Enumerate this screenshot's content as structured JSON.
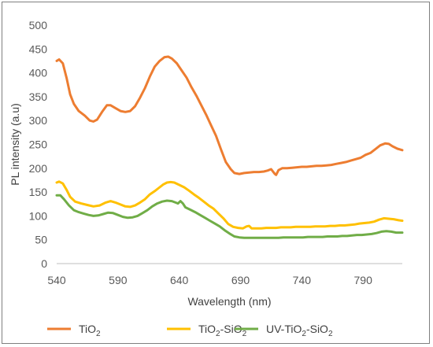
{
  "chart_data": {
    "type": "line",
    "title": "",
    "xlabel": "Wavelength (nm)",
    "ylabel": "PL intensity (a.u)",
    "xlim": [
      540,
      822
    ],
    "ylim": [
      0,
      500
    ],
    "x_ticks": [
      540,
      590,
      640,
      690,
      740,
      790
    ],
    "y_ticks": [
      0,
      50,
      100,
      150,
      200,
      250,
      300,
      350,
      400,
      450,
      500
    ],
    "grid": false,
    "legend_position": "bottom",
    "series": [
      {
        "name": "TiO2",
        "legend": {
          "base": "TiO",
          "sub": "2",
          "rest": ""
        },
        "color": "#ED7D31",
        "points": [
          [
            540,
            425
          ],
          [
            542,
            428
          ],
          [
            545,
            420
          ],
          [
            548,
            390
          ],
          [
            551,
            355
          ],
          [
            554,
            335
          ],
          [
            558,
            320
          ],
          [
            563,
            310
          ],
          [
            567,
            300
          ],
          [
            570,
            298
          ],
          [
            573,
            302
          ],
          [
            577,
            318
          ],
          [
            581,
            332
          ],
          [
            584,
            332
          ],
          [
            588,
            326
          ],
          [
            592,
            320
          ],
          [
            596,
            318
          ],
          [
            600,
            320
          ],
          [
            604,
            330
          ],
          [
            608,
            348
          ],
          [
            612,
            368
          ],
          [
            616,
            392
          ],
          [
            620,
            413
          ],
          [
            624,
            425
          ],
          [
            628,
            433
          ],
          [
            631,
            434
          ],
          [
            634,
            430
          ],
          [
            638,
            420
          ],
          [
            642,
            405
          ],
          [
            646,
            390
          ],
          [
            650,
            370
          ],
          [
            654,
            352
          ],
          [
            658,
            332
          ],
          [
            662,
            312
          ],
          [
            666,
            290
          ],
          [
            670,
            268
          ],
          [
            674,
            240
          ],
          [
            678,
            213
          ],
          [
            682,
            198
          ],
          [
            685,
            190
          ],
          [
            689,
            188
          ],
          [
            693,
            190
          ],
          [
            697,
            191
          ],
          [
            701,
            192
          ],
          [
            705,
            192
          ],
          [
            709,
            193
          ],
          [
            712,
            195
          ],
          [
            715,
            198
          ],
          [
            718,
            188
          ],
          [
            719,
            186
          ],
          [
            721,
            196
          ],
          [
            724,
            200
          ],
          [
            728,
            200
          ],
          [
            732,
            201
          ],
          [
            736,
            202
          ],
          [
            740,
            203
          ],
          [
            744,
            203
          ],
          [
            748,
            204
          ],
          [
            752,
            205
          ],
          [
            756,
            205
          ],
          [
            760,
            206
          ],
          [
            764,
            207
          ],
          [
            768,
            209
          ],
          [
            772,
            211
          ],
          [
            776,
            213
          ],
          [
            780,
            216
          ],
          [
            784,
            219
          ],
          [
            788,
            222
          ],
          [
            792,
            228
          ],
          [
            796,
            232
          ],
          [
            800,
            240
          ],
          [
            804,
            248
          ],
          [
            808,
            252
          ],
          [
            811,
            251
          ],
          [
            814,
            246
          ],
          [
            818,
            241
          ],
          [
            822,
            238
          ]
        ]
      },
      {
        "name": "TiO2-SiO2",
        "legend": {
          "base": "TiO",
          "sub": "2",
          "rest": "-SiO",
          "sub2": "2"
        },
        "color": "#FFC000",
        "points": [
          [
            540,
            170
          ],
          [
            542,
            172
          ],
          [
            545,
            168
          ],
          [
            548,
            155
          ],
          [
            551,
            140
          ],
          [
            555,
            130
          ],
          [
            560,
            126
          ],
          [
            565,
            123
          ],
          [
            570,
            120
          ],
          [
            575,
            122
          ],
          [
            580,
            128
          ],
          [
            584,
            131
          ],
          [
            588,
            128
          ],
          [
            592,
            124
          ],
          [
            596,
            120
          ],
          [
            600,
            119
          ],
          [
            604,
            122
          ],
          [
            608,
            128
          ],
          [
            612,
            135
          ],
          [
            616,
            145
          ],
          [
            620,
            152
          ],
          [
            624,
            160
          ],
          [
            627,
            166
          ],
          [
            630,
            170
          ],
          [
            633,
            171
          ],
          [
            636,
            170
          ],
          [
            640,
            165
          ],
          [
            644,
            160
          ],
          [
            648,
            153
          ],
          [
            652,
            145
          ],
          [
            656,
            138
          ],
          [
            660,
            130
          ],
          [
            664,
            122
          ],
          [
            668,
            115
          ],
          [
            672,
            105
          ],
          [
            676,
            95
          ],
          [
            680,
            83
          ],
          [
            684,
            77
          ],
          [
            688,
            75
          ],
          [
            692,
            74
          ],
          [
            695,
            78
          ],
          [
            697,
            79
          ],
          [
            699,
            74
          ],
          [
            703,
            74
          ],
          [
            707,
            74
          ],
          [
            711,
            75
          ],
          [
            715,
            75
          ],
          [
            719,
            75
          ],
          [
            723,
            76
          ],
          [
            727,
            76
          ],
          [
            731,
            76
          ],
          [
            735,
            77
          ],
          [
            739,
            77
          ],
          [
            743,
            77
          ],
          [
            747,
            77
          ],
          [
            751,
            78
          ],
          [
            755,
            78
          ],
          [
            759,
            78
          ],
          [
            763,
            79
          ],
          [
            767,
            79
          ],
          [
            771,
            80
          ],
          [
            775,
            80
          ],
          [
            779,
            81
          ],
          [
            783,
            82
          ],
          [
            787,
            84
          ],
          [
            791,
            85
          ],
          [
            795,
            86
          ],
          [
            799,
            88
          ],
          [
            803,
            92
          ],
          [
            807,
            95
          ],
          [
            811,
            94
          ],
          [
            815,
            93
          ],
          [
            819,
            91
          ],
          [
            822,
            90
          ]
        ]
      },
      {
        "name": "UV-TiO2-SiO2",
        "legend": {
          "base": "UV-TiO",
          "sub": "2",
          "rest": "-SiO",
          "sub2": "2"
        },
        "color": "#70AD47",
        "points": [
          [
            540,
            143
          ],
          [
            543,
            143
          ],
          [
            546,
            135
          ],
          [
            550,
            122
          ],
          [
            554,
            112
          ],
          [
            558,
            108
          ],
          [
            562,
            105
          ],
          [
            566,
            102
          ],
          [
            570,
            100
          ],
          [
            574,
            101
          ],
          [
            578,
            104
          ],
          [
            582,
            107
          ],
          [
            586,
            106
          ],
          [
            590,
            102
          ],
          [
            594,
            98
          ],
          [
            598,
            96
          ],
          [
            602,
            97
          ],
          [
            606,
            100
          ],
          [
            610,
            106
          ],
          [
            614,
            112
          ],
          [
            618,
            120
          ],
          [
            622,
            126
          ],
          [
            626,
            130
          ],
          [
            630,
            132
          ],
          [
            634,
            131
          ],
          [
            637,
            128
          ],
          [
            639,
            126
          ],
          [
            641,
            131
          ],
          [
            643,
            126
          ],
          [
            645,
            118
          ],
          [
            649,
            113
          ],
          [
            653,
            108
          ],
          [
            657,
            102
          ],
          [
            661,
            96
          ],
          [
            665,
            90
          ],
          [
            669,
            84
          ],
          [
            673,
            78
          ],
          [
            677,
            70
          ],
          [
            681,
            63
          ],
          [
            685,
            57
          ],
          [
            689,
            55
          ],
          [
            693,
            54
          ],
          [
            697,
            54
          ],
          [
            701,
            54
          ],
          [
            705,
            54
          ],
          [
            709,
            54
          ],
          [
            713,
            54
          ],
          [
            717,
            54
          ],
          [
            721,
            54
          ],
          [
            725,
            55
          ],
          [
            729,
            55
          ],
          [
            733,
            55
          ],
          [
            737,
            55
          ],
          [
            741,
            55
          ],
          [
            745,
            56
          ],
          [
            749,
            56
          ],
          [
            753,
            56
          ],
          [
            757,
            56
          ],
          [
            761,
            57
          ],
          [
            765,
            57
          ],
          [
            769,
            57
          ],
          [
            773,
            58
          ],
          [
            777,
            58
          ],
          [
            781,
            59
          ],
          [
            785,
            60
          ],
          [
            789,
            60
          ],
          [
            793,
            61
          ],
          [
            797,
            62
          ],
          [
            801,
            64
          ],
          [
            805,
            67
          ],
          [
            809,
            68
          ],
          [
            813,
            67
          ],
          [
            817,
            65
          ],
          [
            822,
            65
          ]
        ]
      }
    ]
  }
}
